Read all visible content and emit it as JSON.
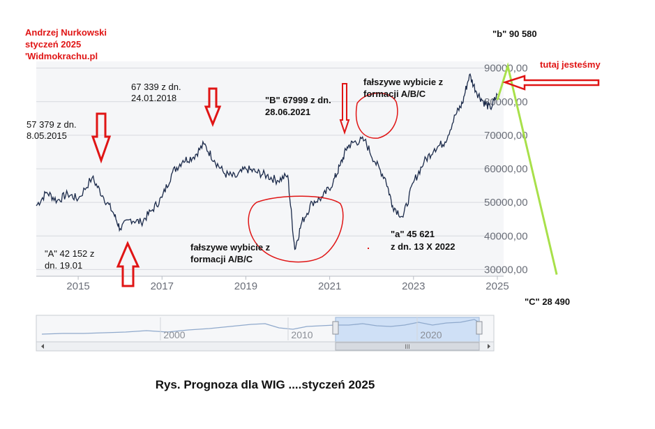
{
  "chart_data": {
    "type": "line",
    "title": "",
    "xlabel": "",
    "ylabel": "",
    "ylim": [
      28000,
      92000
    ],
    "xlim": [
      "2014-01",
      "2025-02"
    ],
    "grid": true,
    "x_ticks": [
      "2015",
      "2017",
      "2019",
      "2021",
      "2023",
      "2025"
    ],
    "y_ticks": [
      "30000,00",
      "40000,00",
      "50000,00",
      "60000,00",
      "70000,00",
      "80000,00",
      "90000,00"
    ],
    "series": [
      {
        "color": "#1b2a4a",
        "x": [
          "2014-01",
          "2014-04",
          "2014-07",
          "2014-10",
          "2015-01",
          "2015-05",
          "2015-08",
          "2015-11",
          "2016-01",
          "2016-04",
          "2016-07",
          "2016-10",
          "2017-01",
          "2017-04",
          "2017-07",
          "2017-10",
          "2018-01",
          "2018-04",
          "2018-07",
          "2018-10",
          "2019-01",
          "2019-04",
          "2019-07",
          "2019-10",
          "2020-01",
          "2020-03",
          "2020-05",
          "2020-08",
          "2020-11",
          "2021-02",
          "2021-04",
          "2021-06",
          "2021-08",
          "2021-11",
          "2022-02",
          "2022-05",
          "2022-07",
          "2022-10",
          "2023-01",
          "2023-04",
          "2023-07",
          "2023-10",
          "2024-01",
          "2024-03",
          "2024-05",
          "2024-07",
          "2024-09",
          "2024-11",
          "2025-01"
        ],
        "values": [
          49000,
          53000,
          50500,
          52500,
          51000,
          57379,
          52000,
          47000,
          42152,
          45000,
          44000,
          47500,
          51500,
          59000,
          62500,
          63500,
          67339,
          62500,
          58500,
          57500,
          60000,
          59000,
          58000,
          56500,
          58000,
          36000,
          44000,
          50000,
          51500,
          56000,
          61000,
          66500,
          67999,
          68500,
          62000,
          57000,
          49000,
          45621,
          56000,
          62000,
          66000,
          68000,
          76000,
          79500,
          88000,
          83000,
          80000,
          78000,
          82000
        ]
      },
      {
        "color": "#a8e04a",
        "x": [
          "2025-01",
          "2025-04",
          "2026-06"
        ],
        "values": [
          80500,
          90580,
          28490
        ]
      }
    ],
    "annotations": [
      {
        "id": "author",
        "text": [
          "Andrzej Nurkowski",
          "styczeń 2025",
          "'Widmokrachu.pl"
        ],
        "color": "#e01515"
      },
      {
        "id": "b90",
        "text": [
          "\"b\" 90 580"
        ]
      },
      {
        "id": "tu",
        "text": [
          "tutaj jesteśmy"
        ],
        "color": "#e01515"
      },
      {
        "id": "p67",
        "text": [
          "67 339 z dn.",
          "24.01.2018"
        ]
      },
      {
        "id": "p57",
        "text": [
          "57 379 z dn.",
          "8.05.2015"
        ]
      },
      {
        "id": "pB",
        "text": [
          "\"B\" 67999 z dn.",
          "28.06.2021"
        ]
      },
      {
        "id": "fw1",
        "text": [
          "fałszywe wybicie z",
          "formacji A/B/C"
        ]
      },
      {
        "id": "fw2",
        "text": [
          "fałszywe wybicie z",
          "formacji A/B/C"
        ]
      },
      {
        "id": "pA",
        "text": [
          "\"A\" 42 152 z",
          "dn. 19.01"
        ]
      },
      {
        "id": "pa",
        "text": [
          "\"a\" 45 621",
          "z dn. 13 X    2022"
        ]
      },
      {
        "id": "pC",
        "text": [
          "\"C\" 28 490"
        ]
      }
    ],
    "navigator": {
      "ticks": [
        "2000",
        "2010",
        "2020"
      ]
    },
    "caption": "Rys.  Prognoza dla WIG ....styczeń 2025"
  }
}
